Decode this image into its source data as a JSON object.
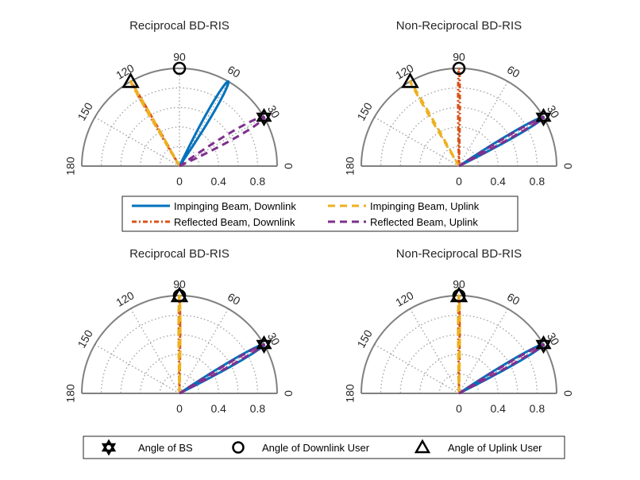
{
  "colors": {
    "impinging_downlink": "#0072BD",
    "reflected_downlink": "#D95319",
    "impinging_uplink": "#EDB120",
    "reflected_uplink": "#7E2F8E",
    "axis": "#808080",
    "grid": "#a0a0a0"
  },
  "legend_beams": {
    "impinging_downlink": "Impinging Beam, Downlink",
    "impinging_uplink": "Impinging Beam, Uplink",
    "reflected_downlink": "Reflected Beam, Downlink",
    "reflected_uplink": "Reflected Beam, Uplink"
  },
  "legend_markers": {
    "bs": "Angle of BS",
    "downlink_user": "Angle of Downlink User",
    "uplink_user": "Angle of Uplink User"
  },
  "chart_data": [
    {
      "type": "polar",
      "title": "Reciprocal BD-RIS",
      "theta_limits_deg": [
        0,
        180
      ],
      "r_limits": [
        0,
        1
      ],
      "r_ticks": [
        "0",
        "0.4",
        "0.8"
      ],
      "theta_ticks": [
        "0",
        "30",
        "60",
        "90",
        "120",
        "150",
        "180"
      ],
      "markers": {
        "bs_deg": 30,
        "downlink_user_deg": 90,
        "uplink_user_deg": 120
      },
      "series": [
        {
          "name": "Impinging Beam, Downlink",
          "peak_deg": 60,
          "peak_r": 1.0,
          "beamwidth_deg": 2.6
        },
        {
          "name": "Reflected Beam, Downlink",
          "peak_deg": 120,
          "peak_r": 1.0,
          "beamwidth_deg": 0.6
        },
        {
          "name": "Impinging Beam, Uplink",
          "peak_deg": 120,
          "peak_r": 1.0,
          "beamwidth_deg": 0.6
        },
        {
          "name": "Reflected Beam, Uplink",
          "peak_deg": 30,
          "peak_r": 1.0,
          "beamwidth_deg": 3.2
        }
      ]
    },
    {
      "type": "polar",
      "title": "Non-Reciprocal BD-RIS",
      "theta_limits_deg": [
        0,
        180
      ],
      "r_limits": [
        0,
        1
      ],
      "r_ticks": [
        "0",
        "0.4",
        "0.8"
      ],
      "theta_ticks": [
        "0",
        "30",
        "60",
        "90",
        "120",
        "150",
        "180"
      ],
      "markers": {
        "bs_deg": 30,
        "downlink_user_deg": 90,
        "uplink_user_deg": 120
      },
      "series": [
        {
          "name": "Impinging Beam, Downlink",
          "peak_deg": 30,
          "peak_r": 1.0,
          "beamwidth_deg": 2.2
        },
        {
          "name": "Reflected Beam, Downlink",
          "peak_deg": 90,
          "peak_r": 1.0,
          "beamwidth_deg": 0.8
        },
        {
          "name": "Impinging Beam, Uplink",
          "peak_deg": 120,
          "peak_r": 1.0,
          "beamwidth_deg": 0.6
        },
        {
          "name": "Reflected Beam, Uplink",
          "peak_deg": 30,
          "peak_r": 1.0,
          "beamwidth_deg": 1.5
        }
      ]
    },
    {
      "type": "polar",
      "title": "Reciprocal BD-RIS",
      "theta_limits_deg": [
        0,
        180
      ],
      "r_limits": [
        0,
        1
      ],
      "r_ticks": [
        "0",
        "0.4",
        "0.8"
      ],
      "theta_ticks": [
        "0",
        "30",
        "60",
        "90",
        "120",
        "150",
        "180"
      ],
      "markers": {
        "bs_deg": 30,
        "downlink_user_deg": 90,
        "uplink_user_deg": 90
      },
      "series": [
        {
          "name": "Impinging Beam, Downlink",
          "peak_deg": 30,
          "peak_r": 1.0,
          "beamwidth_deg": 2.2
        },
        {
          "name": "Reflected Beam, Downlink",
          "peak_deg": 90,
          "peak_r": 1.0,
          "beamwidth_deg": 0.6
        },
        {
          "name": "Impinging Beam, Uplink",
          "peak_deg": 90,
          "peak_r": 1.0,
          "beamwidth_deg": 0.8
        },
        {
          "name": "Reflected Beam, Uplink",
          "peak_deg": 30,
          "peak_r": 1.0,
          "beamwidth_deg": 1.5
        }
      ]
    },
    {
      "type": "polar",
      "title": "Non-Reciprocal BD-RIS",
      "theta_limits_deg": [
        0,
        180
      ],
      "r_limits": [
        0,
        1
      ],
      "r_ticks": [
        "0",
        "0.4",
        "0.8"
      ],
      "theta_ticks": [
        "0",
        "30",
        "60",
        "90",
        "120",
        "150",
        "180"
      ],
      "markers": {
        "bs_deg": 30,
        "downlink_user_deg": 90,
        "uplink_user_deg": 90
      },
      "series": [
        {
          "name": "Impinging Beam, Downlink",
          "peak_deg": 30,
          "peak_r": 1.0,
          "beamwidth_deg": 2.2
        },
        {
          "name": "Reflected Beam, Downlink",
          "peak_deg": 90,
          "peak_r": 1.0,
          "beamwidth_deg": 0.6
        },
        {
          "name": "Impinging Beam, Uplink",
          "peak_deg": 90,
          "peak_r": 1.0,
          "beamwidth_deg": 0.8
        },
        {
          "name": "Reflected Beam, Uplink",
          "peak_deg": 30,
          "peak_r": 1.0,
          "beamwidth_deg": 1.5
        }
      ]
    }
  ]
}
